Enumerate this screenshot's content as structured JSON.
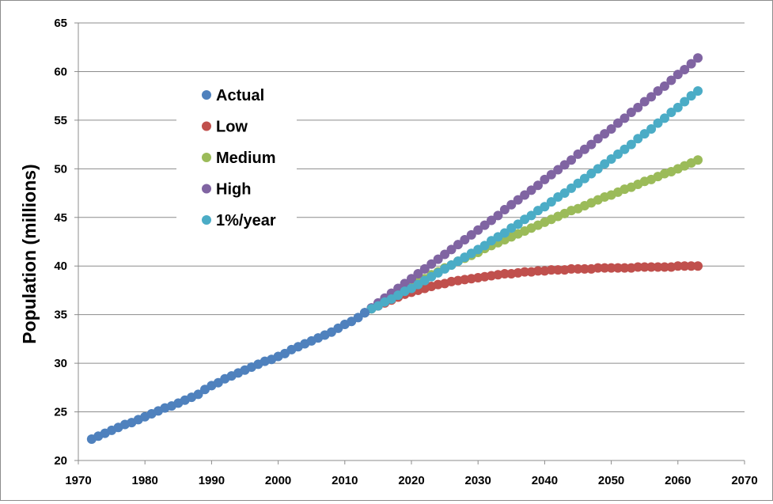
{
  "chart_data": {
    "type": "scatter",
    "title": "",
    "xlabel": "",
    "ylabel": "Population (millions)",
    "xlim": [
      1970,
      2070
    ],
    "ylim": [
      20,
      65
    ],
    "xticks": [
      1970,
      1980,
      1990,
      2000,
      2010,
      2020,
      2030,
      2040,
      2050,
      2060,
      2070
    ],
    "yticks": [
      20,
      25,
      30,
      35,
      40,
      45,
      50,
      55,
      60,
      65
    ],
    "grid": "horizontal",
    "legend_position": "top-left",
    "series": [
      {
        "name": "Actual",
        "color": "#4f81bd",
        "x": [
          1972,
          1973,
          1974,
          1975,
          1976,
          1977,
          1978,
          1979,
          1980,
          1981,
          1982,
          1983,
          1984,
          1985,
          1986,
          1987,
          1988,
          1989,
          1990,
          1991,
          1992,
          1993,
          1994,
          1995,
          1996,
          1997,
          1998,
          1999,
          2000,
          2001,
          2002,
          2003,
          2004,
          2005,
          2006,
          2007,
          2008,
          2009,
          2010,
          2011,
          2012,
          2013
        ],
        "y": [
          22.2,
          22.5,
          22.8,
          23.1,
          23.4,
          23.7,
          23.9,
          24.2,
          24.5,
          24.8,
          25.1,
          25.4,
          25.6,
          25.9,
          26.2,
          26.5,
          26.8,
          27.3,
          27.7,
          28.0,
          28.4,
          28.7,
          29.0,
          29.3,
          29.6,
          29.9,
          30.2,
          30.4,
          30.7,
          31.0,
          31.4,
          31.7,
          32.0,
          32.3,
          32.6,
          32.9,
          33.2,
          33.6,
          34.0,
          34.3,
          34.7,
          35.2
        ]
      },
      {
        "name": "Low",
        "color": "#c0504d",
        "x": [
          2013,
          2014,
          2015,
          2016,
          2017,
          2018,
          2019,
          2020,
          2021,
          2022,
          2023,
          2024,
          2025,
          2026,
          2027,
          2028,
          2029,
          2030,
          2031,
          2032,
          2033,
          2034,
          2035,
          2036,
          2037,
          2038,
          2039,
          2040,
          2041,
          2042,
          2043,
          2044,
          2045,
          2046,
          2047,
          2048,
          2049,
          2050,
          2051,
          2052,
          2053,
          2054,
          2055,
          2056,
          2057,
          2058,
          2059,
          2060,
          2061,
          2062,
          2063
        ],
        "y": [
          35.2,
          35.6,
          35.9,
          36.2,
          36.5,
          36.8,
          37.1,
          37.3,
          37.5,
          37.7,
          37.9,
          38.1,
          38.2,
          38.4,
          38.5,
          38.6,
          38.7,
          38.8,
          38.9,
          39.0,
          39.1,
          39.2,
          39.2,
          39.3,
          39.4,
          39.4,
          39.5,
          39.5,
          39.6,
          39.6,
          39.6,
          39.7,
          39.7,
          39.7,
          39.7,
          39.8,
          39.8,
          39.8,
          39.8,
          39.8,
          39.8,
          39.9,
          39.9,
          39.9,
          39.9,
          39.9,
          39.9,
          40.0,
          40.0,
          40.0,
          40.0
        ]
      },
      {
        "name": "Medium",
        "color": "#9bbb59",
        "x": [
          2013,
          2014,
          2015,
          2016,
          2017,
          2018,
          2019,
          2020,
          2021,
          2022,
          2023,
          2024,
          2025,
          2026,
          2027,
          2028,
          2029,
          2030,
          2031,
          2032,
          2033,
          2034,
          2035,
          2036,
          2037,
          2038,
          2039,
          2040,
          2041,
          2042,
          2043,
          2044,
          2045,
          2046,
          2047,
          2048,
          2049,
          2050,
          2051,
          2052,
          2053,
          2054,
          2055,
          2056,
          2057,
          2058,
          2059,
          2060,
          2061,
          2062,
          2063
        ],
        "y": [
          35.2,
          35.6,
          36.0,
          36.4,
          36.8,
          37.2,
          37.6,
          38.0,
          38.4,
          38.7,
          39.1,
          39.4,
          39.8,
          40.1,
          40.5,
          40.8,
          41.1,
          41.4,
          41.8,
          42.1,
          42.4,
          42.7,
          43.0,
          43.3,
          43.6,
          43.9,
          44.2,
          44.5,
          44.8,
          45.1,
          45.4,
          45.7,
          45.9,
          46.2,
          46.5,
          46.8,
          47.1,
          47.3,
          47.6,
          47.9,
          48.1,
          48.4,
          48.7,
          48.9,
          49.2,
          49.5,
          49.7,
          50.0,
          50.3,
          50.6,
          50.9
        ]
      },
      {
        "name": "High",
        "color": "#8064a2",
        "x": [
          2013,
          2014,
          2015,
          2016,
          2017,
          2018,
          2019,
          2020,
          2021,
          2022,
          2023,
          2024,
          2025,
          2026,
          2027,
          2028,
          2029,
          2030,
          2031,
          2032,
          2033,
          2034,
          2035,
          2036,
          2037,
          2038,
          2039,
          2040,
          2041,
          2042,
          2043,
          2044,
          2045,
          2046,
          2047,
          2048,
          2049,
          2050,
          2051,
          2052,
          2053,
          2054,
          2055,
          2056,
          2057,
          2058,
          2059,
          2060,
          2061,
          2062,
          2063
        ],
        "y": [
          35.2,
          35.7,
          36.2,
          36.7,
          37.2,
          37.7,
          38.2,
          38.7,
          39.2,
          39.7,
          40.2,
          40.7,
          41.2,
          41.7,
          42.2,
          42.7,
          43.2,
          43.7,
          44.2,
          44.7,
          45.2,
          45.8,
          46.3,
          46.8,
          47.3,
          47.8,
          48.3,
          48.9,
          49.4,
          49.9,
          50.4,
          50.9,
          51.5,
          52.0,
          52.5,
          53.1,
          53.6,
          54.1,
          54.7,
          55.2,
          55.8,
          56.3,
          56.9,
          57.4,
          58.0,
          58.5,
          59.1,
          59.7,
          60.2,
          60.8,
          61.4
        ]
      },
      {
        "name": "1%/year",
        "color": "#4bacc6",
        "x": [
          2013,
          2014,
          2015,
          2016,
          2017,
          2018,
          2019,
          2020,
          2021,
          2022,
          2023,
          2024,
          2025,
          2026,
          2027,
          2028,
          2029,
          2030,
          2031,
          2032,
          2033,
          2034,
          2035,
          2036,
          2037,
          2038,
          2039,
          2040,
          2041,
          2042,
          2043,
          2044,
          2045,
          2046,
          2047,
          2048,
          2049,
          2050,
          2051,
          2052,
          2053,
          2054,
          2055,
          2056,
          2057,
          2058,
          2059,
          2060,
          2061,
          2062,
          2063
        ],
        "y": [
          35.2,
          35.6,
          35.9,
          36.3,
          36.6,
          37.0,
          37.4,
          37.7,
          38.1,
          38.5,
          38.9,
          39.3,
          39.7,
          40.1,
          40.5,
          40.9,
          41.3,
          41.7,
          42.1,
          42.6,
          43.0,
          43.4,
          43.9,
          44.3,
          44.8,
          45.2,
          45.7,
          46.1,
          46.6,
          47.1,
          47.5,
          48.0,
          48.5,
          49.0,
          49.5,
          50.0,
          50.5,
          51.0,
          51.5,
          52.0,
          52.5,
          53.1,
          53.6,
          54.1,
          54.7,
          55.2,
          55.8,
          56.3,
          56.9,
          57.5,
          58.0
        ]
      }
    ]
  }
}
